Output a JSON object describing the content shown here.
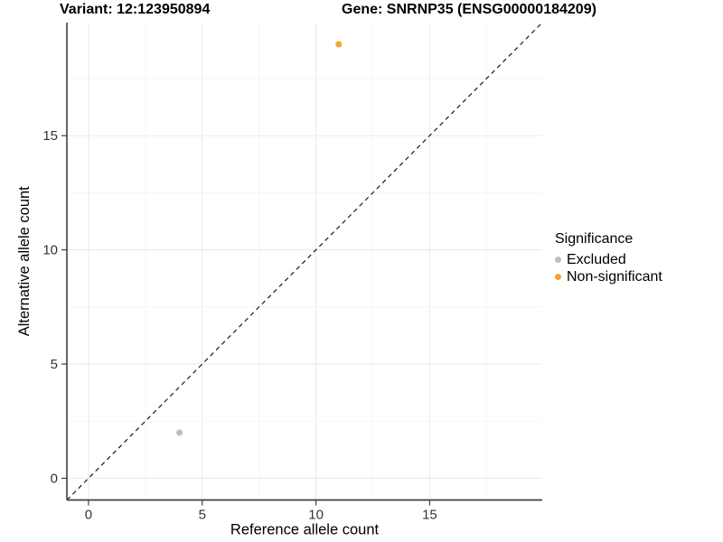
{
  "titles": {
    "variant": "Variant: 12:123950894",
    "gene": "Gene: SNRNP35 (ENSG00000184209)"
  },
  "chart_data": {
    "type": "scatter",
    "xlabel": "Reference allele count",
    "ylabel": "Alternative allele count",
    "xlim": [
      -0.95,
      19.95
    ],
    "ylim": [
      -0.95,
      19.95
    ],
    "x_breaks": [
      0,
      5,
      10,
      15
    ],
    "y_breaks": [
      0,
      5,
      10,
      15
    ],
    "minor_step": 2.5,
    "identity_line": true,
    "series": [
      {
        "name": "Excluded",
        "color": "#BDBDBD",
        "points": [
          {
            "x": 4,
            "y": 2
          }
        ]
      },
      {
        "name": "Non-significant",
        "color": "#F5A430",
        "points": [
          {
            "x": 11,
            "y": 19
          }
        ]
      }
    ],
    "legend": {
      "title": "Significance",
      "position": "right"
    },
    "style": {
      "grid_major_color": "#EBEBEB",
      "grid_minor_color": "#F4F4F4",
      "axis_line_color": "#404040",
      "identity_line_color": "#1A1A1A",
      "background": "#FFFFFF"
    }
  }
}
